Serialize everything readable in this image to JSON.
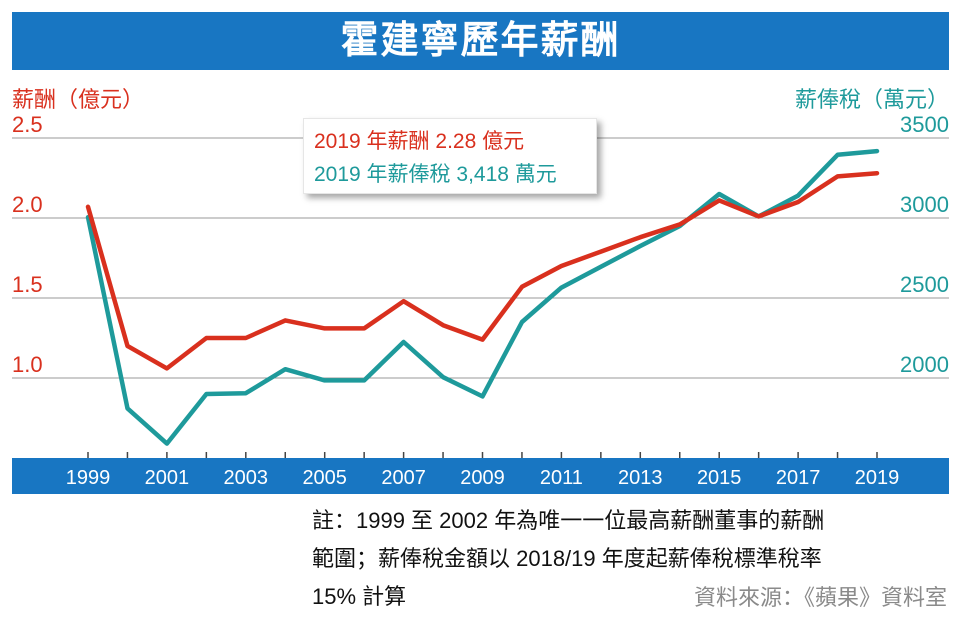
{
  "title": "霍建寧歷年薪酬",
  "left_axis_title": "薪酬（億元）",
  "right_axis_title": "薪俸稅（萬元）",
  "callout": {
    "line1": "2019 年薪酬 2.28 億元",
    "line2": "2019 年薪俸稅 3,418 萬元"
  },
  "note_lines": [
    "註：1999 至 2002 年為唯一一位最高薪酬董事的薪酬",
    "範圍；薪俸稅金額以 2018/19 年度起薪俸稅標準稅率",
    "15% 計算"
  ],
  "source": "資料來源：《蘋果》資料室",
  "colors": {
    "title_bg": "#1876c2",
    "axis_band": "#1876c2",
    "salary": "#d9301e",
    "tax": "#1e9a9b"
  },
  "chart_data": {
    "type": "line",
    "x": [
      1999,
      2000,
      2001,
      2002,
      2003,
      2004,
      2005,
      2006,
      2007,
      2008,
      2009,
      2010,
      2011,
      2012,
      2013,
      2014,
      2015,
      2016,
      2017,
      2018,
      2019
    ],
    "x_tick_labels": [
      "1999",
      "2001",
      "2003",
      "2005",
      "2007",
      "2009",
      "2011",
      "2013",
      "2015",
      "2017",
      "2019"
    ],
    "series": [
      {
        "axis": "left",
        "color": "#d9301e",
        "values": [
          2.07,
          1.2,
          1.06,
          1.25,
          1.25,
          1.36,
          1.31,
          1.31,
          1.48,
          1.33,
          1.24,
          1.57,
          1.7,
          1.79,
          1.88,
          1.96,
          2.11,
          2.01,
          2.1,
          2.26,
          2.28
        ]
      },
      {
        "axis": "right",
        "color": "#1e9a9b",
        "values": [
          3005,
          1810,
          1590,
          1900,
          1905,
          2055,
          1985,
          1985,
          2225,
          2005,
          1885,
          2350,
          2565,
          2695,
          2825,
          2950,
          3150,
          3010,
          3140,
          3395,
          3418
        ]
      }
    ],
    "left_axis": {
      "ticks": [
        1.0,
        1.5,
        2.0,
        2.5
      ],
      "tick_labels": [
        "1.0",
        "1.5",
        "2.0",
        "2.5"
      ],
      "range": [
        0.5,
        2.5
      ]
    },
    "right_axis": {
      "ticks": [
        2000,
        2500,
        3000,
        3500
      ],
      "tick_labels": [
        "2000",
        "2500",
        "3000",
        "3500"
      ],
      "range": [
        1500,
        3500
      ]
    },
    "grid": true
  }
}
